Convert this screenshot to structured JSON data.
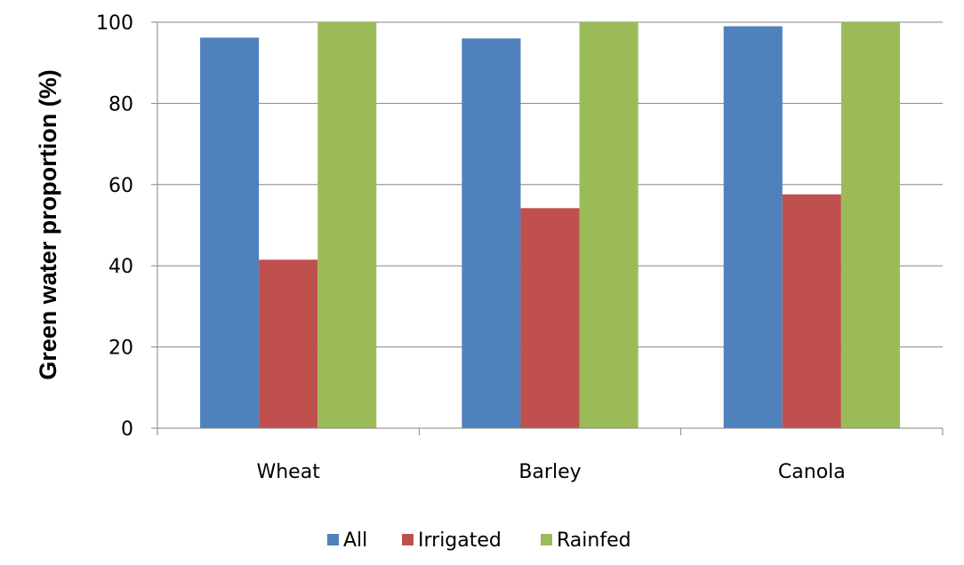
{
  "chart_data": {
    "type": "bar",
    "title": "",
    "xlabel": "",
    "ylabel": "Green water proportion (%)",
    "categories": [
      "Wheat",
      "Barley",
      "Canola"
    ],
    "series": [
      {
        "name": "All",
        "color": "#4F81BD",
        "values": [
          96.2,
          96.0,
          99.0
        ]
      },
      {
        "name": "Irrigated",
        "color": "#C0504D",
        "values": [
          41.5,
          54.2,
          57.6
        ]
      },
      {
        "name": "Rainfed",
        "color": "#9BBB59",
        "values": [
          100,
          100,
          100
        ]
      }
    ],
    "ylim": [
      0,
      100
    ],
    "yticks": [
      0,
      20,
      40,
      60,
      80,
      100
    ],
    "grid": true,
    "legend_position": "bottom"
  }
}
